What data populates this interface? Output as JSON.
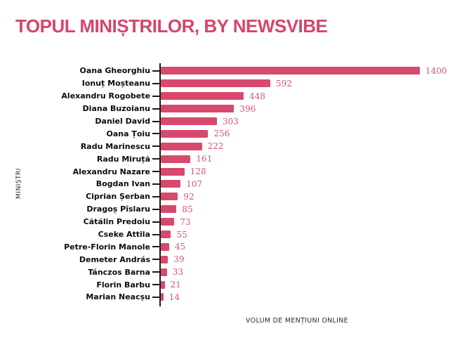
{
  "title": "TOPUL MINIȘTRILOR, BY NEWSVIBE",
  "colors": {
    "accent": "#d5466a",
    "bar": "#d7496d",
    "value_label": "#d25776",
    "axis": "#1a1a1a",
    "axis_label_text": "#2b2b2b"
  },
  "chart_data": {
    "type": "bar",
    "orientation": "horizontal",
    "title": "TOPUL MINIȘTRILOR, BY NEWSVIBE",
    "categories": [
      "Oana Gheorghiu",
      "Ionuț Moșteanu",
      "Alexandru Rogobete",
      "Diana Buzoianu",
      "Daniel David",
      "Oana Țoiu",
      "Radu Marinescu",
      "Radu Miruță",
      "Alexandru Nazare",
      "Bogdan Ivan",
      "Ciprian Șerban",
      "Dragoș Pîslaru",
      "Cătălin Predoiu",
      "Cseke Attila",
      "Petre-Florin Manole",
      "Demeter András",
      "Tánczos Barna",
      "Florin Barbu",
      "Marian Neacșu"
    ],
    "values": [
      1400,
      592,
      448,
      396,
      303,
      256,
      222,
      161,
      128,
      107,
      92,
      85,
      73,
      55,
      45,
      39,
      33,
      21,
      14
    ],
    "xlabel": "VOLUM DE MENȚIUNI ONLINE",
    "ylabel": "MINIȘTRI",
    "xlim": [
      0,
      1400
    ],
    "grid": false,
    "legend": false,
    "value_labels_shown": true
  }
}
